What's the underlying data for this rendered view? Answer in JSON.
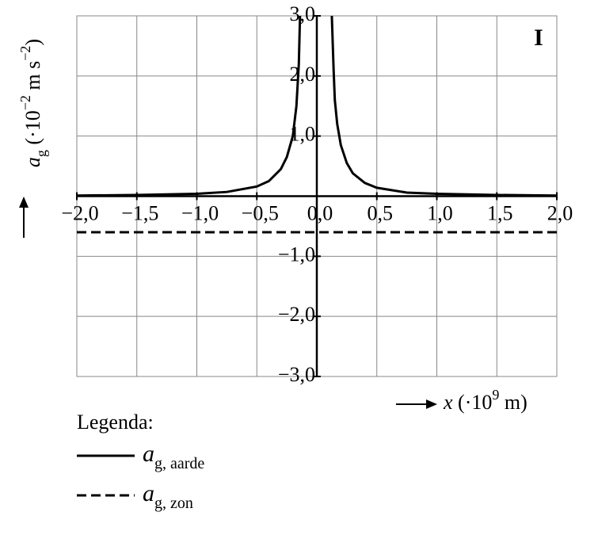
{
  "chart_data": {
    "type": "line",
    "annotation": "I",
    "ylabel_parts": [
      {
        "text": "a",
        "style": "italic"
      },
      {
        "text": "g",
        "style": "sub"
      },
      {
        "text": " (·10",
        "style": "normal"
      },
      {
        "text": "−2",
        "style": "sup"
      },
      {
        "text": " m s",
        "style": "normal"
      },
      {
        "text": "−2",
        "style": "sup"
      },
      {
        "text": ")",
        "style": "normal"
      }
    ],
    "xlabel_parts": [
      {
        "text": "x",
        "style": "italic"
      },
      {
        "text": " (·10",
        "style": "normal"
      },
      {
        "text": "9",
        "style": "sup"
      },
      {
        "text": " m)",
        "style": "normal"
      }
    ],
    "legend_title": "Legenda:",
    "x": [
      -2.0,
      -1.5,
      -1.0,
      -0.75,
      -0.5,
      -0.4,
      -0.3,
      -0.25,
      -0.2,
      -0.17,
      -0.15,
      -0.14,
      0,
      0.125,
      0.14,
      0.15,
      0.17,
      0.2,
      0.25,
      0.3,
      0.4,
      0.5,
      0.75,
      1.0,
      1.5,
      2.0
    ],
    "series": [
      {
        "name": "ag, aarde",
        "color": "#000000",
        "dash": "solid",
        "values": [
          0.01,
          0.02,
          0.04,
          0.07,
          0.16,
          0.25,
          0.45,
          0.65,
          1.0,
          1.5,
          2.2,
          3.0,
          null,
          3.0,
          2.1,
          1.6,
          1.2,
          0.85,
          0.55,
          0.38,
          0.22,
          0.14,
          0.06,
          0.04,
          0.02,
          0.01
        ]
      },
      {
        "name": "ag, zon",
        "color": "#000000",
        "dash": "dashed",
        "values": [
          -0.6,
          -0.6,
          -0.6,
          -0.6,
          -0.6,
          -0.6,
          -0.6,
          -0.6,
          -0.6,
          -0.6,
          -0.6,
          -0.6,
          -0.6,
          -0.6,
          -0.6,
          -0.6,
          -0.6,
          -0.6,
          -0.6,
          -0.6,
          -0.6,
          -0.6,
          -0.6,
          -0.6,
          -0.6,
          -0.6
        ]
      }
    ],
    "xlim": [
      -2.0,
      2.0
    ],
    "ylim": [
      -3.0,
      3.0
    ],
    "xticks": [
      {
        "value": -2.0,
        "label": "−2,0"
      },
      {
        "value": -1.5,
        "label": "−1,5"
      },
      {
        "value": -1.0,
        "label": "−1,0"
      },
      {
        "value": -0.5,
        "label": "−0,5"
      },
      {
        "value": 0,
        "label": "0,0"
      },
      {
        "value": 0.5,
        "label": "0,5"
      },
      {
        "value": 1.0,
        "label": "1,0"
      },
      {
        "value": 1.5,
        "label": "1,5"
      },
      {
        "value": 2.0,
        "label": "2,0"
      }
    ],
    "yticks": [
      {
        "value": -3.0,
        "label": "−3,0"
      },
      {
        "value": -2.0,
        "label": "−2,0"
      },
      {
        "value": -1.0,
        "label": "−1,0"
      },
      {
        "value": 1.0,
        "label": "1,0"
      },
      {
        "value": 2.0,
        "label": "2,0"
      },
      {
        "value": 3.0,
        "label": "3,0"
      }
    ],
    "grid": true
  }
}
